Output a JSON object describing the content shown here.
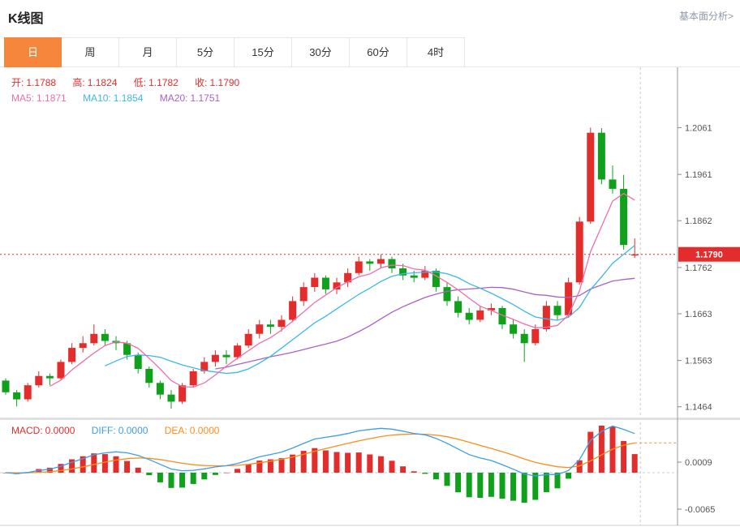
{
  "page": {
    "title": "K线图",
    "top_link": "基本面分析>"
  },
  "tabs": [
    {
      "key": "day",
      "label": "日",
      "active": true
    },
    {
      "key": "week",
      "label": "周",
      "active": false
    },
    {
      "key": "month",
      "label": "月",
      "active": false
    },
    {
      "key": "min5",
      "label": "5分",
      "active": false
    },
    {
      "key": "min15",
      "label": "15分",
      "active": false
    },
    {
      "key": "min30",
      "label": "30分",
      "active": false
    },
    {
      "key": "min60",
      "label": "60分",
      "active": false
    },
    {
      "key": "hour4",
      "label": "4时",
      "active": false
    }
  ],
  "legend": {
    "open_label": "开:",
    "open_value": "1.1788",
    "high_label": "高:",
    "high_value": "1.1824",
    "low_label": "低:",
    "low_value": "1.1782",
    "close_label": "收:",
    "close_value": "1.1790",
    "ma5_label": "MA5:",
    "ma5_value": "1.1871",
    "ma10_label": "MA10:",
    "ma10_value": "1.1854",
    "ma20_label": "MA20:",
    "ma20_value": "1.1751"
  },
  "macd_legend": {
    "macd_label": "MACD:",
    "macd_value": "0.0000",
    "diff_label": "DIFF:",
    "diff_value": "0.0000",
    "dea_label": "DEA:",
    "dea_value": "0.0000"
  },
  "axis": {
    "price_labels": [
      "1.2061",
      "1.1961",
      "1.1862",
      "1.1762",
      "1.1663",
      "1.1563",
      "1.1464"
    ],
    "current_price": "1.1790",
    "macd_labels": [
      "0.0009",
      "-0.0065"
    ]
  },
  "colors": {
    "up": "#e32d2d",
    "down": "#0fa11c",
    "ma5": "#f06eaa",
    "ma10": "#3cb8e8",
    "ma20": "#a862c8",
    "diff": "#3c9ee8",
    "dea": "#ff8c1a",
    "accent": "#f5863b",
    "price_line": "#e32d2d"
  },
  "chart_data": {
    "type": "candlestick",
    "panels": [
      "price",
      "macd"
    ],
    "overlays": [
      "MA5",
      "MA10",
      "MA20"
    ],
    "price_range": [
      1.1441,
      1.219
    ],
    "axis_price_ticks": [
      1.2061,
      1.1961,
      1.1862,
      1.1762,
      1.1663,
      1.1563,
      1.1464
    ],
    "current_price": 1.179,
    "macd_axis_ticks": [
      0.0009,
      -0.0065
    ],
    "candles": [
      [
        1.152,
        1.1525,
        1.149,
        1.1495
      ],
      [
        1.1495,
        1.15,
        1.1465,
        1.148
      ],
      [
        1.148,
        1.1515,
        1.1475,
        1.151
      ],
      [
        1.151,
        1.154,
        1.1505,
        1.153
      ],
      [
        1.153,
        1.1535,
        1.151,
        1.1525
      ],
      [
        1.1525,
        1.1565,
        1.152,
        1.156
      ],
      [
        1.156,
        1.16,
        1.1555,
        1.159
      ],
      [
        1.159,
        1.1615,
        1.158,
        1.16
      ],
      [
        1.16,
        1.164,
        1.1595,
        1.162
      ],
      [
        1.162,
        1.163,
        1.1595,
        1.1605
      ],
      [
        1.1605,
        1.1615,
        1.1585,
        1.16
      ],
      [
        1.16,
        1.1605,
        1.1565,
        1.1575
      ],
      [
        1.1575,
        1.158,
        1.1535,
        1.1545
      ],
      [
        1.1545,
        1.155,
        1.1505,
        1.1515
      ],
      [
        1.1515,
        1.152,
        1.148,
        1.149
      ],
      [
        1.149,
        1.15,
        1.146,
        1.1475
      ],
      [
        1.1475,
        1.1515,
        1.147,
        1.151
      ],
      [
        1.151,
        1.1545,
        1.1505,
        1.154
      ],
      [
        1.154,
        1.157,
        1.1535,
        1.156
      ],
      [
        1.156,
        1.1585,
        1.155,
        1.1575
      ],
      [
        1.1575,
        1.1585,
        1.1555,
        1.157
      ],
      [
        1.157,
        1.16,
        1.1565,
        1.1595
      ],
      [
        1.1595,
        1.163,
        1.159,
        1.162
      ],
      [
        1.162,
        1.165,
        1.161,
        1.164
      ],
      [
        1.164,
        1.165,
        1.162,
        1.1635
      ],
      [
        1.1635,
        1.166,
        1.1625,
        1.165
      ],
      [
        1.165,
        1.17,
        1.1645,
        1.169
      ],
      [
        1.169,
        1.173,
        1.168,
        1.172
      ],
      [
        1.172,
        1.175,
        1.171,
        1.174
      ],
      [
        1.174,
        1.1745,
        1.1705,
        1.1715
      ],
      [
        1.1715,
        1.174,
        1.1705,
        1.173
      ],
      [
        1.173,
        1.176,
        1.172,
        1.175
      ],
      [
        1.175,
        1.1785,
        1.1745,
        1.1775
      ],
      [
        1.1775,
        1.178,
        1.1755,
        1.177
      ],
      [
        1.177,
        1.179,
        1.176,
        1.178
      ],
      [
        1.178,
        1.1785,
        1.175,
        1.176
      ],
      [
        1.176,
        1.177,
        1.1735,
        1.1745
      ],
      [
        1.1745,
        1.1755,
        1.173,
        1.174
      ],
      [
        1.174,
        1.1765,
        1.1735,
        1.1755
      ],
      [
        1.1755,
        1.176,
        1.171,
        1.172
      ],
      [
        1.172,
        1.173,
        1.168,
        1.169
      ],
      [
        1.169,
        1.17,
        1.1655,
        1.1665
      ],
      [
        1.1665,
        1.1675,
        1.164,
        1.165
      ],
      [
        1.165,
        1.168,
        1.1645,
        1.167
      ],
      [
        1.167,
        1.1685,
        1.166,
        1.1675
      ],
      [
        1.1675,
        1.168,
        1.163,
        1.164
      ],
      [
        1.164,
        1.165,
        1.161,
        1.162
      ],
      [
        1.162,
        1.163,
        1.156,
        1.16
      ],
      [
        1.16,
        1.164,
        1.1595,
        1.163
      ],
      [
        1.163,
        1.169,
        1.1625,
        1.168
      ],
      [
        1.168,
        1.169,
        1.165,
        1.166
      ],
      [
        1.166,
        1.174,
        1.1655,
        1.173
      ],
      [
        1.173,
        1.187,
        1.1725,
        1.186
      ],
      [
        1.186,
        1.2061,
        1.1855,
        1.205
      ],
      [
        1.205,
        1.206,
        1.194,
        1.195
      ],
      [
        1.195,
        1.198,
        1.192,
        1.193
      ],
      [
        1.193,
        1.196,
        1.18,
        1.181
      ],
      [
        1.1788,
        1.1824,
        1.1782,
        1.179
      ]
    ]
  }
}
